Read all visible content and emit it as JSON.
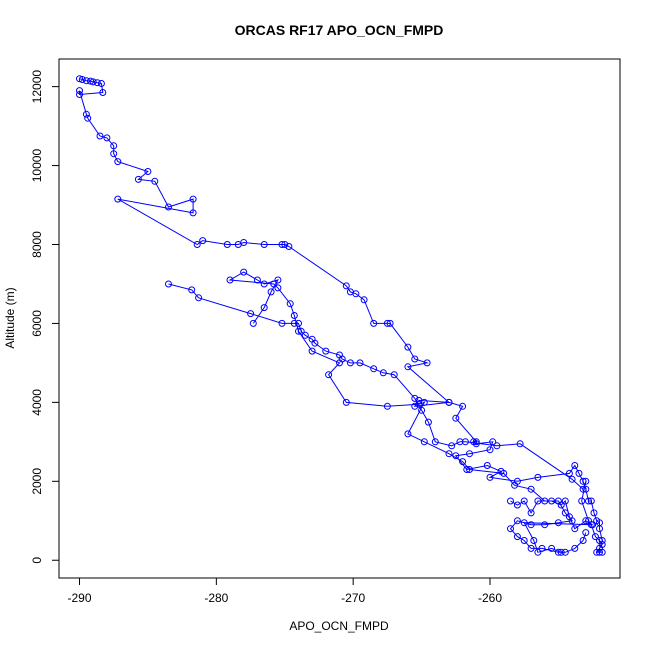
{
  "chart_data": {
    "type": "line",
    "title": "ORCAS RF17 APO_OCN_FMPD",
    "xlabel": "APO_OCN_FMPD",
    "ylabel": "Altitude (m)",
    "xlim": [
      -291.5,
      -250.5
    ],
    "ylim": [
      -450,
      12700
    ],
    "x_ticks": [
      -290,
      -280,
      -270,
      -260
    ],
    "y_ticks": [
      0,
      2000,
      4000,
      6000,
      8000,
      10000,
      12000
    ],
    "x_tick_labels": [
      "-290",
      "-280",
      "-270",
      "-260"
    ],
    "y_tick_labels": [
      "0",
      "2000",
      "4000",
      "6000",
      "8000",
      "10000",
      "12000"
    ],
    "grid": false,
    "legend": "none",
    "colors": {
      "series": "#0000ff",
      "axes": "#000000"
    },
    "series": [
      {
        "marker": "open-circle",
        "points": [
          [
            -290.0,
            12200
          ],
          [
            -289.8,
            12180
          ],
          [
            -289.5,
            12150
          ],
          [
            -289.2,
            12140
          ],
          [
            -289.0,
            12120
          ],
          [
            -288.7,
            12100
          ],
          [
            -288.4,
            12080
          ],
          [
            -288.3,
            11850
          ],
          [
            -290.0,
            11800
          ],
          [
            -290.0,
            11900
          ],
          [
            -289.5,
            11300
          ],
          [
            -289.4,
            11200
          ],
          [
            -288.5,
            10750
          ],
          [
            -288.0,
            10700
          ],
          [
            -287.5,
            10500
          ],
          [
            -287.5,
            10300
          ],
          [
            -287.2,
            10100
          ],
          [
            -285.0,
            9850
          ],
          [
            -285.7,
            9650
          ],
          [
            -284.5,
            9600
          ],
          [
            -283.5,
            8950
          ],
          [
            -281.7,
            9150
          ],
          [
            -281.7,
            8800
          ],
          [
            -287.2,
            9150
          ],
          [
            -281.4,
            8000
          ],
          [
            -281.0,
            8100
          ],
          [
            -279.2,
            8000
          ],
          [
            -278.4,
            8000
          ],
          [
            -278.0,
            8050
          ],
          [
            -276.5,
            8000
          ],
          [
            -275.2,
            8000
          ],
          [
            -275.0,
            8000
          ],
          [
            -274.7,
            7950
          ],
          [
            -270.5,
            6950
          ],
          [
            -270.2,
            6800
          ],
          [
            -269.8,
            6750
          ],
          [
            -269.2,
            6600
          ],
          [
            -268.5,
            6000
          ],
          [
            -267.5,
            6000
          ],
          [
            -267.3,
            6000
          ],
          [
            -266.0,
            5400
          ],
          [
            -265.5,
            5100
          ],
          [
            -264.6,
            5000
          ],
          [
            -266.0,
            4900
          ],
          [
            -263.0,
            4000
          ],
          [
            -265.2,
            4050
          ],
          [
            -265.5,
            3900
          ],
          [
            -263.0,
            4000
          ],
          [
            -262.0,
            3900
          ],
          [
            -262.5,
            3600
          ],
          [
            -261.0,
            3000
          ],
          [
            -261.2,
            3000
          ],
          [
            -261.0,
            2950
          ],
          [
            -259.8,
            3000
          ],
          [
            -260.0,
            2800
          ],
          [
            -261.5,
            2700
          ],
          [
            -262.5,
            2650
          ],
          [
            -261.7,
            2300
          ],
          [
            -260.2,
            2400
          ],
          [
            -259.2,
            2250
          ],
          [
            -260.0,
            2100
          ],
          [
            -258.0,
            2000
          ],
          [
            -256.5,
            2100
          ],
          [
            -254.2,
            2200
          ],
          [
            -253.8,
            2400
          ],
          [
            -253.5,
            2200
          ],
          [
            -253.2,
            2000
          ],
          [
            -253.0,
            1800
          ],
          [
            -252.8,
            1500
          ],
          [
            -252.6,
            1500
          ],
          [
            -252.4,
            1200
          ],
          [
            -252.2,
            1000
          ],
          [
            -252.0,
            950
          ],
          [
            -252.0,
            800
          ],
          [
            -251.8,
            500
          ],
          [
            -252.0,
            300
          ],
          [
            -252.0,
            200
          ],
          [
            -251.8,
            200
          ],
          [
            -252.2,
            200
          ],
          [
            -251.8,
            400
          ],
          [
            -252.0,
            500
          ],
          [
            -252.3,
            600
          ],
          [
            -252.6,
            900
          ],
          [
            -252.8,
            1000
          ],
          [
            -253.3,
            1500
          ],
          [
            -253.0,
            2000
          ]
        ]
      },
      {
        "marker": "open-circle",
        "points": [
          [
            -283.5,
            7000
          ],
          [
            -281.8,
            6850
          ],
          [
            -281.3,
            6650
          ],
          [
            -277.5,
            6250
          ],
          [
            -275.2,
            6000
          ],
          [
            -274.3,
            6000
          ],
          [
            -274.0,
            6000
          ],
          [
            -273.8,
            5800
          ],
          [
            -273.5,
            5700
          ],
          [
            -273.0,
            5600
          ],
          [
            -272.8,
            5500
          ],
          [
            -272.0,
            5300
          ],
          [
            -271.0,
            5200
          ],
          [
            -270.8,
            5100
          ],
          [
            -270.2,
            5000
          ],
          [
            -269.5,
            5000
          ],
          [
            -268.5,
            4850
          ],
          [
            -267.8,
            4750
          ],
          [
            -267.0,
            4700
          ],
          [
            -265.5,
            4100
          ],
          [
            -265.0,
            3800
          ],
          [
            -264.5,
            3500
          ],
          [
            -264.0,
            3000
          ],
          [
            -262.8,
            2900
          ],
          [
            -262.2,
            3000
          ],
          [
            -261.8,
            3000
          ],
          [
            -259.5,
            2900
          ],
          [
            -257.8,
            2950
          ],
          [
            -254.0,
            2050
          ],
          [
            -253.2,
            1800
          ]
        ]
      },
      {
        "marker": "open-circle",
        "points": [
          [
            -277.3,
            6000
          ],
          [
            -276.5,
            6400
          ],
          [
            -276.0,
            6800
          ],
          [
            -275.5,
            7100
          ],
          [
            -276.5,
            7000
          ],
          [
            -277.0,
            7100
          ],
          [
            -278.0,
            7300
          ],
          [
            -279.0,
            7100
          ],
          [
            -275.8,
            7000
          ],
          [
            -275.5,
            6900
          ],
          [
            -274.6,
            6500
          ],
          [
            -274.3,
            6200
          ],
          [
            -274.0,
            5800
          ],
          [
            -273.0,
            5300
          ],
          [
            -271.0,
            5000
          ],
          [
            -271.8,
            4700
          ],
          [
            -270.5,
            4000
          ],
          [
            -267.5,
            3900
          ],
          [
            -265.2,
            3950
          ],
          [
            -264.8,
            4000
          ],
          [
            -266.0,
            3200
          ],
          [
            -264.8,
            3000
          ],
          [
            -263.0,
            2700
          ],
          [
            -262.0,
            2500
          ],
          [
            -261.5,
            2300
          ],
          [
            -259.0,
            2200
          ],
          [
            -258.2,
            1900
          ],
          [
            -257.0,
            1800
          ],
          [
            -256.0,
            1500
          ],
          [
            -255.0,
            1500
          ],
          [
            -254.5,
            1200
          ],
          [
            -254.0,
            1000
          ],
          [
            -255.0,
            950
          ],
          [
            -256.0,
            900
          ],
          [
            -257.0,
            900
          ],
          [
            -258.0,
            1000
          ],
          [
            -258.5,
            800
          ],
          [
            -258.0,
            600
          ],
          [
            -257.5,
            500
          ],
          [
            -257.0,
            300
          ],
          [
            -256.2,
            300
          ],
          [
            -255.0,
            200
          ],
          [
            -254.5,
            200
          ],
          [
            -253.8,
            300
          ],
          [
            -253.2,
            500
          ],
          [
            -253.0,
            700
          ]
        ]
      },
      {
        "marker": "open-circle",
        "points": [
          [
            -258.5,
            1500
          ],
          [
            -258.0,
            1400
          ],
          [
            -257.5,
            1500
          ],
          [
            -257.0,
            1200
          ],
          [
            -256.5,
            1500
          ],
          [
            -255.5,
            1500
          ],
          [
            -254.8,
            1400
          ],
          [
            -254.5,
            1500
          ],
          [
            -254.2,
            1100
          ],
          [
            -253.8,
            800
          ],
          [
            -253.0,
            1000
          ],
          [
            -252.5,
            900
          ],
          [
            -257.5,
            950
          ],
          [
            -256.8,
            500
          ],
          [
            -256.5,
            200
          ],
          [
            -255.5,
            300
          ],
          [
            -254.8,
            200
          ]
        ]
      }
    ]
  }
}
